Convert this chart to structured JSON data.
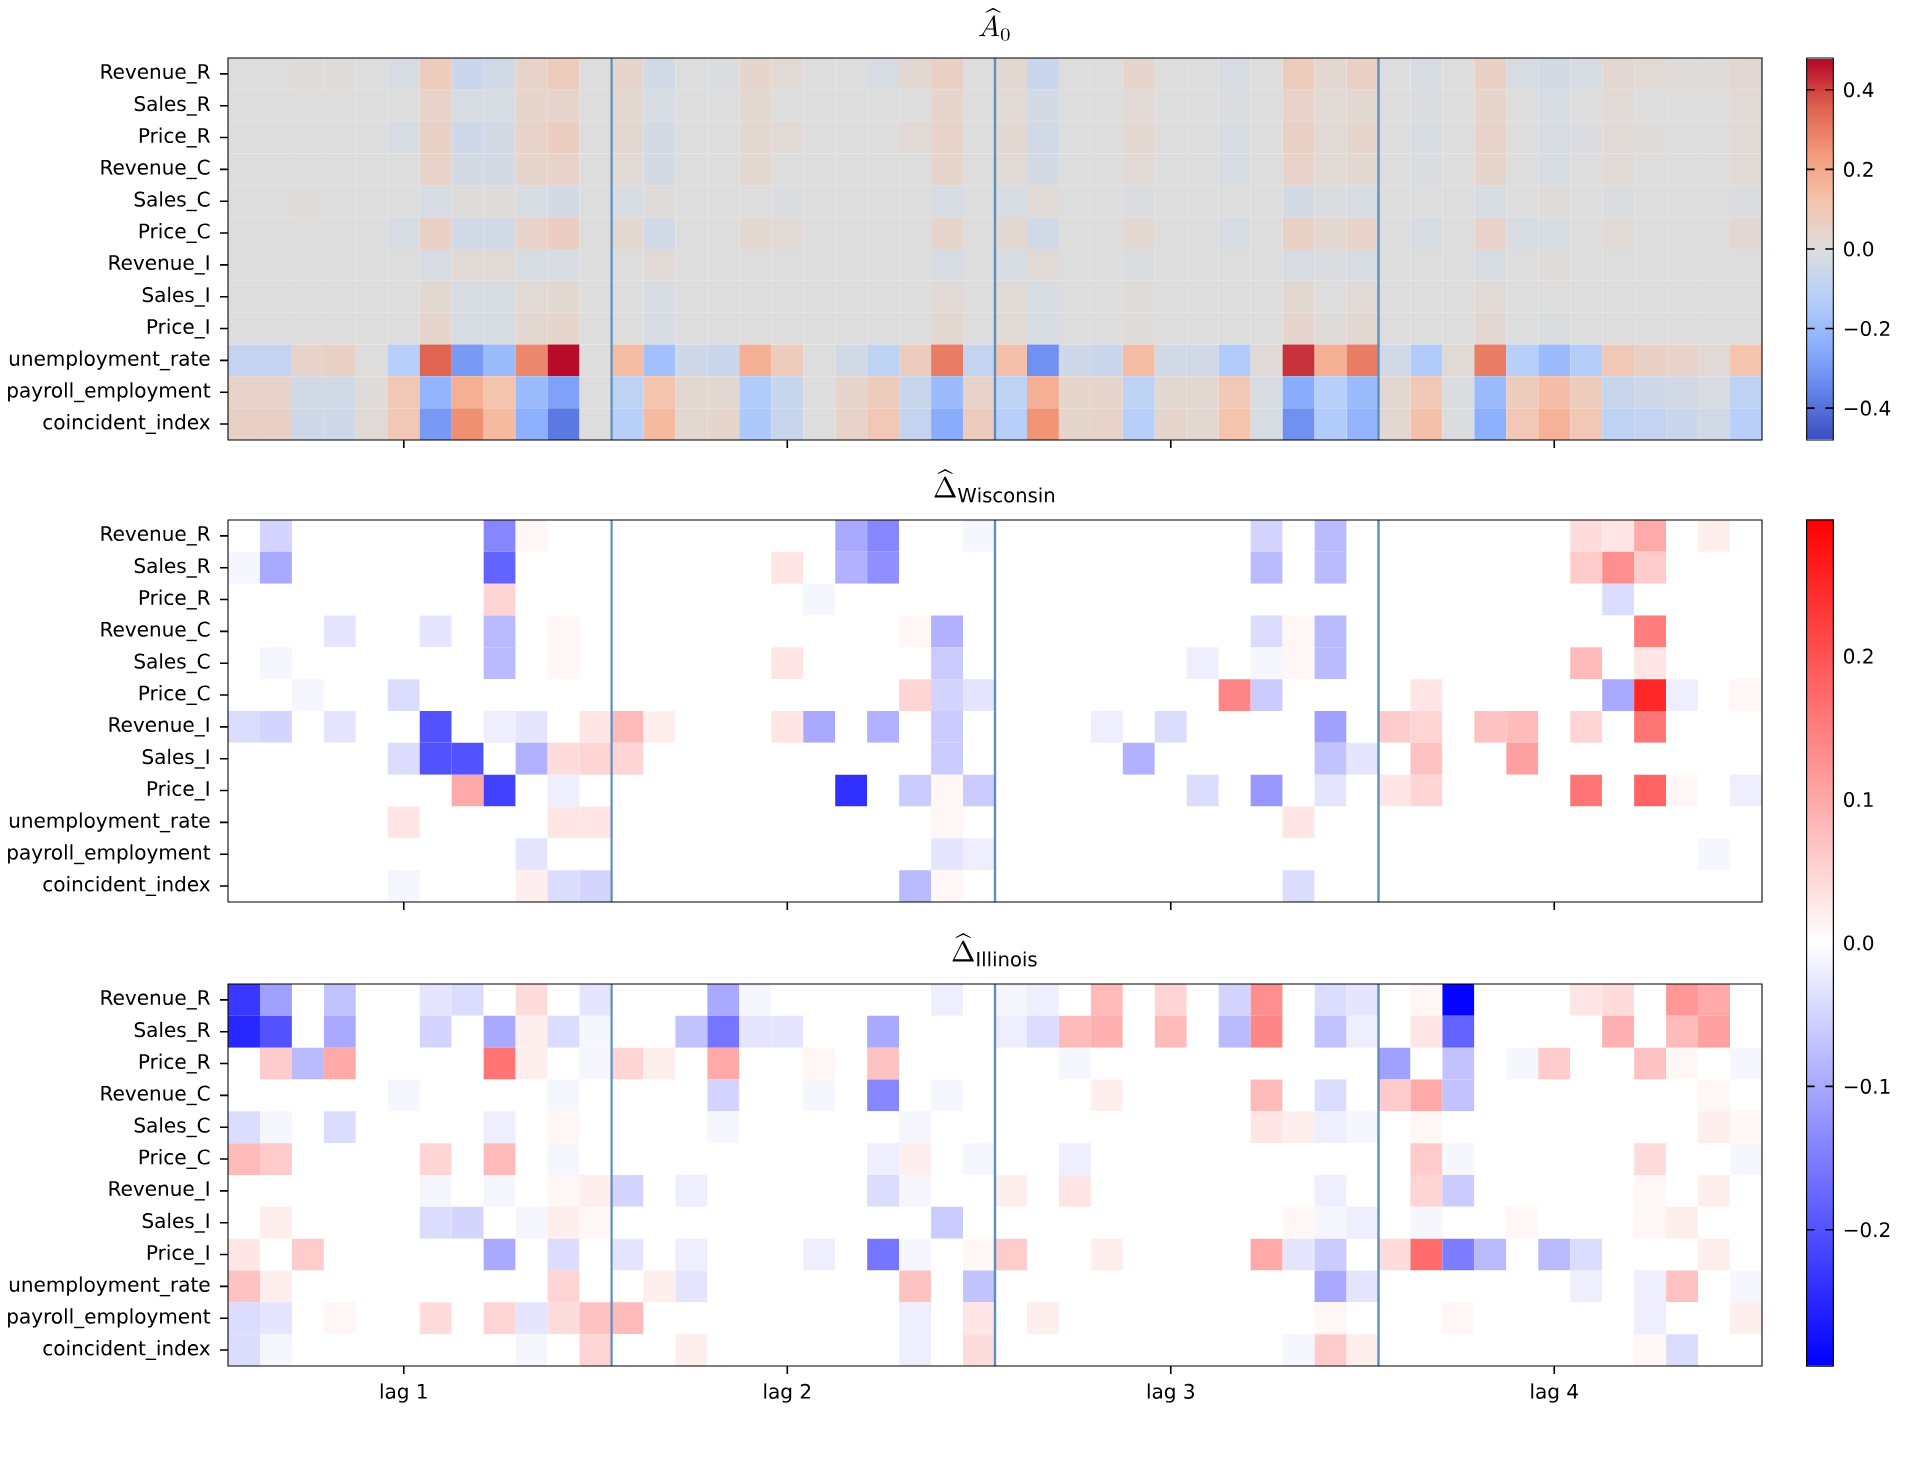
{
  "chart_data": [
    {
      "type": "heatmap",
      "title": "\\widehat{A}_0",
      "categories": [
        null,
        null,
        null,
        null,
        null,
        null,
        null,
        null,
        null,
        null,
        null,
        null,
        null,
        null,
        null,
        null,
        null,
        null,
        null,
        null,
        null,
        null,
        null,
        null,
        null,
        null,
        null,
        null,
        null,
        null,
        null,
        null,
        null,
        null,
        null,
        null,
        null,
        null,
        null,
        null,
        null,
        null,
        null,
        null,
        null,
        null,
        null,
        null
      ],
      "y_categories": [
        "Revenue_R",
        "Sales_R",
        "Price_R",
        "Revenue_C",
        "Sales_C",
        "Price_C",
        "Revenue_I",
        "Sales_I",
        "Price_I",
        "unemployment_rate",
        "payroll_employment",
        "coincident_index"
      ],
      "clim": [
        -0.48,
        0.48
      ],
      "cticks": [
        {
          "value": -0.4,
          "label": "−0.4"
        },
        {
          "value": -0.2,
          "label": "−0.2"
        },
        {
          "value": 0,
          "label": "0.0"
        },
        {
          "value": 0.2,
          "label": "0.2"
        },
        {
          "value": 0.4,
          "label": "0.4"
        }
      ],
      "cells": [
        [
          0,
          0,
          0.01,
          0.01,
          0,
          -0.02,
          0.08,
          -0.06,
          -0.04,
          0.05,
          0.08,
          0,
          0.04,
          -0.04,
          0,
          -0.01,
          0.04,
          0.02,
          0,
          0,
          -0.02,
          0.03,
          0.06,
          0,
          0.03,
          -0.06,
          0,
          0,
          0.04,
          0,
          0,
          -0.02,
          0,
          0.08,
          0.03,
          0.06,
          0,
          -0.02,
          0,
          0.06,
          -0.02,
          -0.03,
          -0.02,
          0.03,
          0.02,
          0.01,
          0.01,
          0.03
        ],
        [
          0,
          0,
          0,
          0,
          0,
          0,
          0.05,
          -0.02,
          -0.02,
          0.04,
          0.04,
          0,
          0.03,
          -0.02,
          0,
          0,
          0.03,
          0,
          0,
          0,
          0,
          0,
          0.04,
          0,
          0.02,
          -0.03,
          0,
          0,
          0.02,
          0,
          0,
          -0.01,
          0,
          0.05,
          0.02,
          0.03,
          0,
          -0.01,
          0,
          0.04,
          0,
          -0.02,
          0,
          0.02,
          0,
          0,
          0,
          0.02
        ],
        [
          0,
          0,
          0,
          0,
          0,
          -0.02,
          0.06,
          -0.05,
          -0.03,
          0.05,
          0.07,
          0,
          0.03,
          -0.03,
          0,
          0,
          0.03,
          0.02,
          0,
          0,
          0,
          0.02,
          0.05,
          0,
          0.03,
          -0.04,
          0,
          0,
          0.03,
          0,
          0,
          -0.02,
          0,
          0.06,
          0.02,
          0.04,
          0,
          -0.02,
          0,
          0.05,
          0,
          -0.02,
          -0.01,
          0.02,
          0.01,
          0,
          0,
          0.02
        ],
        [
          0,
          0,
          0,
          0,
          0,
          0,
          0.05,
          -0.03,
          -0.03,
          0.04,
          0.05,
          0,
          0.02,
          -0.03,
          0,
          0,
          0.03,
          0,
          0,
          0,
          0,
          0,
          0.04,
          0,
          0.02,
          -0.03,
          0,
          0,
          0.02,
          0,
          0,
          -0.02,
          0,
          0.05,
          0.02,
          0.03,
          0,
          -0.01,
          0,
          0.04,
          0,
          -0.02,
          0,
          0.02,
          0,
          0,
          0,
          0.02
        ],
        [
          0,
          0,
          0.01,
          0,
          0,
          0,
          -0.02,
          0.01,
          0.01,
          -0.02,
          -0.03,
          0,
          -0.02,
          0.01,
          0,
          0,
          0,
          -0.01,
          0,
          0,
          0,
          0,
          -0.02,
          0,
          -0.02,
          0.02,
          0,
          0,
          -0.01,
          0,
          0,
          0,
          0,
          -0.03,
          -0.01,
          -0.02,
          0,
          0,
          0,
          -0.02,
          0,
          0.01,
          0,
          -0.01,
          0,
          0,
          0,
          -0.01
        ],
        [
          0,
          0,
          0,
          0,
          0,
          -0.02,
          0.06,
          -0.04,
          -0.04,
          0.05,
          0.07,
          0,
          0.03,
          -0.04,
          0,
          0,
          0.03,
          0.02,
          0,
          0,
          0,
          0,
          0.04,
          0,
          0.03,
          -0.04,
          0,
          0,
          0.03,
          0,
          0,
          -0.02,
          0,
          0.06,
          0.03,
          0.05,
          0,
          -0.02,
          0,
          0.05,
          -0.02,
          -0.02,
          0,
          0.02,
          0,
          0,
          0,
          0.03
        ],
        [
          0,
          0,
          0,
          0,
          0,
          0,
          -0.02,
          0.02,
          0.02,
          -0.02,
          -0.02,
          0,
          0,
          0.02,
          0,
          0,
          0,
          0,
          0,
          0,
          0,
          0,
          -0.02,
          0,
          -0.02,
          0.02,
          0,
          0,
          -0.01,
          0,
          0,
          0,
          0,
          -0.02,
          -0.01,
          -0.02,
          0,
          0,
          0,
          -0.02,
          0,
          0.01,
          0,
          0,
          0,
          0,
          0,
          0
        ],
        [
          0,
          0,
          0,
          0,
          0,
          0,
          0.03,
          -0.02,
          -0.02,
          0.02,
          0.03,
          0,
          0,
          -0.02,
          0,
          0,
          0,
          0,
          0,
          0,
          0,
          0,
          0.02,
          0,
          0.02,
          -0.02,
          0,
          0,
          0.01,
          0,
          0,
          0,
          0,
          0.03,
          0,
          0.02,
          0,
          0,
          0,
          0.02,
          0,
          0,
          0,
          0,
          0,
          0,
          0,
          0
        ],
        [
          0,
          0,
          0,
          0,
          0,
          0,
          0.04,
          -0.02,
          -0.02,
          0.03,
          0.04,
          0,
          0,
          -0.02,
          0,
          0,
          0,
          0,
          0,
          0,
          0,
          0,
          0.03,
          0,
          0.02,
          -0.02,
          0,
          0,
          0.01,
          0,
          0,
          0,
          0,
          0.04,
          0.01,
          0.03,
          0,
          0,
          0,
          0.03,
          0,
          -0.01,
          0,
          0,
          0,
          0,
          0,
          0
        ],
        [
          -0.08,
          -0.08,
          0.05,
          0.06,
          0,
          -0.12,
          0.35,
          -0.3,
          -0.2,
          0.28,
          0.47,
          0,
          0.14,
          -0.18,
          -0.05,
          -0.06,
          0.18,
          0.08,
          0,
          -0.04,
          -0.1,
          0.08,
          0.3,
          -0.08,
          0.13,
          -0.32,
          -0.05,
          -0.06,
          0.14,
          -0.04,
          -0.04,
          -0.14,
          0.02,
          0.42,
          0.18,
          0.3,
          -0.04,
          -0.14,
          0.02,
          0.3,
          -0.12,
          -0.2,
          -0.13,
          0.1,
          0.06,
          0.05,
          0.02,
          0.12
        ],
        [
          0.05,
          0.05,
          -0.04,
          -0.04,
          0.01,
          0.1,
          -0.22,
          0.18,
          0.12,
          -0.2,
          -0.28,
          0,
          -0.1,
          0.12,
          0.03,
          0.03,
          -0.14,
          -0.07,
          0,
          0.04,
          0.08,
          -0.07,
          -0.2,
          0.05,
          -0.1,
          0.18,
          0.04,
          0.04,
          -0.1,
          0.03,
          0.03,
          0.1,
          -0.02,
          -0.25,
          -0.12,
          -0.2,
          0.03,
          0.1,
          -0.01,
          -0.2,
          0.08,
          0.14,
          0.08,
          -0.07,
          -0.05,
          -0.04,
          -0.02,
          -0.1
        ],
        [
          0.06,
          0.06,
          -0.05,
          -0.05,
          0.02,
          0.1,
          -0.3,
          0.26,
          0.15,
          -0.24,
          -0.38,
          0,
          -0.12,
          0.15,
          0.03,
          0.04,
          -0.15,
          -0.07,
          0,
          0.05,
          0.1,
          -0.08,
          -0.25,
          0.08,
          -0.12,
          0.25,
          0.04,
          0.05,
          -0.12,
          0.04,
          0.03,
          0.12,
          -0.02,
          -0.32,
          -0.14,
          -0.22,
          0.03,
          0.13,
          -0.01,
          -0.24,
          0.1,
          0.17,
          0.1,
          -0.1,
          -0.08,
          -0.06,
          -0.04,
          -0.12
        ]
      ]
    },
    {
      "type": "heatmap",
      "title": "\\widehat{\\Delta}_{\\mathrm{Wisconsin}}",
      "categories": [
        null,
        null,
        null,
        null,
        null,
        null,
        null,
        null,
        null,
        null,
        null,
        null,
        null,
        null,
        null,
        null,
        null,
        null,
        null,
        null,
        null,
        null,
        null,
        null,
        null,
        null,
        null,
        null,
        null,
        null,
        null,
        null,
        null,
        null,
        null,
        null,
        null,
        null,
        null,
        null,
        null,
        null,
        null,
        null,
        null,
        null,
        null,
        null
      ],
      "y_categories": [
        "Revenue_R",
        "Sales_R",
        "Price_R",
        "Revenue_C",
        "Sales_C",
        "Price_C",
        "Revenue_I",
        "Sales_I",
        "Price_I",
        "unemployment_rate",
        "payroll_employment",
        "coincident_index"
      ],
      "clim": [
        -0.295,
        0.295
      ],
      "cticks": [
        {
          "value": 0,
          "label": "0.0"
        },
        {
          "value": 0.1,
          "label": "0.1"
        },
        {
          "value": 0.2,
          "label": "0.2"
        }
      ],
      "cells": [
        [
          0,
          -0.05,
          0,
          0,
          0,
          0,
          0,
          0,
          -0.14,
          0.01,
          0,
          0,
          0,
          0,
          0,
          0,
          0,
          0,
          0,
          -0.1,
          -0.14,
          0,
          0,
          -0.01,
          0,
          0,
          0,
          0,
          0,
          0,
          0,
          0,
          -0.05,
          0,
          -0.08,
          0,
          0,
          0,
          0,
          0,
          0,
          0,
          0.04,
          0.03,
          0.1,
          0,
          0.02,
          0
        ],
        [
          -0.01,
          -0.1,
          0,
          0,
          0,
          0,
          0,
          0,
          -0.18,
          0,
          0,
          0,
          0,
          0,
          0,
          0,
          0,
          0.03,
          0,
          -0.09,
          -0.13,
          0,
          0,
          0,
          0,
          0,
          0,
          0,
          0,
          0,
          0,
          0,
          -0.08,
          0,
          -0.08,
          0,
          0,
          0,
          0,
          0,
          0,
          0,
          0.06,
          0.13,
          0.06,
          0,
          0,
          0
        ],
        [
          0,
          0,
          0,
          0,
          0,
          0,
          0,
          0,
          0.05,
          0,
          0,
          0,
          0,
          0,
          0,
          0,
          0,
          0,
          -0.01,
          0,
          0,
          0,
          0,
          0,
          0,
          0,
          0,
          0,
          0,
          0,
          0,
          0,
          0,
          0,
          0,
          0,
          0,
          0,
          0,
          0,
          0,
          0,
          0,
          -0.04,
          0,
          0,
          0,
          0
        ],
        [
          0,
          0,
          0,
          -0.03,
          0,
          0,
          -0.03,
          0,
          -0.08,
          0,
          0.01,
          0,
          0,
          0,
          0,
          0,
          0,
          0,
          0,
          0,
          0,
          0.01,
          -0.09,
          0,
          0,
          0,
          0,
          0,
          0,
          0,
          0,
          0,
          -0.04,
          0.01,
          -0.08,
          0,
          0,
          0,
          0,
          0,
          0,
          0,
          0,
          0,
          0.15,
          0,
          0,
          0
        ],
        [
          0,
          -0.01,
          0,
          0,
          0,
          0,
          0,
          0,
          -0.08,
          0,
          0.01,
          0,
          0,
          0,
          0,
          0,
          0,
          0.03,
          0,
          0,
          0,
          0,
          -0.06,
          0,
          0,
          0,
          0,
          0,
          0,
          0,
          -0.02,
          0,
          -0.01,
          0.01,
          -0.08,
          0,
          0,
          0,
          0,
          0,
          0,
          0,
          0.08,
          0,
          0.03,
          0,
          0,
          0
        ],
        [
          0,
          0,
          -0.01,
          0,
          0,
          -0.04,
          0,
          0,
          0,
          0,
          0,
          0,
          0,
          0,
          0,
          0,
          0,
          0,
          0,
          0,
          0,
          0.05,
          -0.05,
          -0.03,
          0,
          0,
          0,
          0,
          0,
          0,
          0,
          0.14,
          -0.06,
          0,
          0,
          0,
          0,
          0.03,
          0,
          0,
          0,
          0,
          0,
          -0.1,
          0.25,
          -0.02,
          0,
          0.01
        ],
        [
          -0.04,
          -0.05,
          0,
          -0.03,
          0,
          0,
          -0.2,
          0,
          -0.02,
          -0.03,
          0,
          0.03,
          0.08,
          0.02,
          0,
          0,
          0,
          0.03,
          -0.1,
          0,
          -0.09,
          0,
          -0.06,
          0,
          0,
          0,
          0,
          -0.02,
          0,
          -0.04,
          0,
          0,
          0,
          0,
          -0.11,
          0,
          0.06,
          0.05,
          0,
          0.07,
          0.08,
          0,
          0.05,
          0,
          0.16,
          0,
          0,
          0
        ],
        [
          0,
          0,
          0,
          0,
          0,
          -0.04,
          -0.2,
          -0.2,
          0,
          -0.09,
          0.04,
          0.05,
          0.05,
          0,
          0,
          0,
          0,
          0,
          0,
          0,
          0,
          0,
          -0.06,
          0,
          0,
          0,
          0,
          0,
          -0.09,
          0,
          0,
          0,
          0,
          0,
          -0.07,
          -0.03,
          0,
          0.07,
          0,
          0,
          0.11,
          0,
          0,
          0,
          0,
          0,
          0,
          0
        ],
        [
          0,
          0,
          0,
          0,
          0,
          0,
          0,
          0.1,
          -0.22,
          0,
          -0.02,
          0,
          0,
          0,
          0,
          0,
          0,
          0,
          0,
          -0.24,
          0,
          -0.06,
          0.01,
          -0.06,
          0,
          0,
          0,
          0,
          0,
          0,
          -0.04,
          0,
          -0.12,
          0,
          -0.03,
          0,
          0.03,
          0.05,
          0,
          0,
          0,
          0,
          0.16,
          0,
          0.18,
          0.01,
          0,
          -0.02
        ],
        [
          0,
          0,
          0,
          0,
          0,
          0.03,
          0,
          0,
          0,
          0,
          0.03,
          0.03,
          0,
          0,
          0,
          0,
          0,
          0,
          0,
          0,
          0,
          0,
          0.01,
          0,
          0,
          0,
          0,
          0,
          0,
          0,
          0,
          0,
          0,
          0.03,
          0,
          0,
          0,
          0,
          0,
          0,
          0,
          0,
          0,
          0,
          0,
          0,
          0,
          0
        ],
        [
          0,
          0,
          0,
          0,
          0,
          0,
          0,
          0,
          0,
          -0.03,
          0,
          0,
          0,
          0,
          0,
          0,
          0,
          0,
          0,
          0,
          0,
          0,
          -0.03,
          -0.02,
          0,
          0,
          0,
          0,
          0,
          0,
          0,
          0,
          0,
          0,
          0,
          0,
          0,
          0,
          0,
          0,
          0,
          0,
          0,
          0,
          0,
          0,
          -0.01,
          0
        ],
        [
          0,
          0,
          0,
          0,
          0,
          -0.01,
          0,
          0,
          0,
          0.02,
          -0.04,
          -0.05,
          0,
          0,
          0,
          0,
          0,
          0,
          0,
          0,
          0,
          -0.08,
          0.01,
          0,
          0,
          0,
          0,
          0,
          0,
          0,
          0,
          0,
          0,
          -0.04,
          0,
          0,
          0,
          0,
          0,
          0,
          0,
          0,
          0,
          0,
          0,
          0,
          0,
          0
        ]
      ]
    },
    {
      "type": "heatmap",
      "title": "\\widehat{\\Delta}_{\\mathrm{Illinois}}",
      "categories": [
        null,
        null,
        null,
        null,
        null,
        "lag 1",
        null,
        null,
        null,
        null,
        null,
        null,
        null,
        null,
        null,
        null,
        null,
        "lag 2",
        null,
        null,
        null,
        null,
        null,
        null,
        null,
        null,
        null,
        null,
        null,
        "lag 3",
        null,
        null,
        null,
        null,
        null,
        null,
        null,
        null,
        null,
        null,
        null,
        "lag 4",
        null,
        null,
        null,
        null,
        null,
        null
      ],
      "y_categories": [
        "Revenue_R",
        "Sales_R",
        "Price_R",
        "Revenue_C",
        "Sales_C",
        "Price_C",
        "Revenue_I",
        "Sales_I",
        "Price_I",
        "unemployment_rate",
        "payroll_employment",
        "coincident_index"
      ],
      "clim": [
        -0.295,
        0.295
      ],
      "cticks": [
        {
          "value": -0.2,
          "label": "−0.2"
        },
        {
          "value": -0.1,
          "label": "−0.1"
        }
      ],
      "cells": [
        [
          -0.23,
          -0.11,
          0,
          -0.07,
          0,
          0,
          -0.03,
          -0.04,
          0,
          0.04,
          0,
          -0.03,
          0,
          0,
          0,
          -0.1,
          -0.01,
          0,
          0,
          0,
          0,
          0,
          -0.02,
          0,
          -0.01,
          -0.02,
          0,
          0.08,
          0,
          0.05,
          0,
          -0.05,
          0.13,
          0,
          -0.04,
          -0.03,
          0,
          0.01,
          -0.29,
          0,
          0,
          0,
          0.03,
          0.04,
          0,
          0.12,
          0.1,
          0
        ],
        [
          -0.25,
          -0.2,
          0,
          -0.1,
          0,
          0,
          -0.05,
          0,
          -0.1,
          0.02,
          -0.04,
          -0.01,
          0,
          0,
          -0.07,
          -0.16,
          -0.03,
          -0.03,
          0,
          0,
          -0.1,
          0,
          0,
          0,
          -0.02,
          -0.04,
          0.08,
          0.09,
          0,
          0.08,
          0,
          -0.08,
          0.14,
          0,
          -0.07,
          -0.02,
          0,
          0.03,
          -0.18,
          0,
          0,
          0,
          0,
          0.09,
          0,
          0.08,
          0.11,
          0
        ],
        [
          0,
          0.06,
          -0.08,
          0.1,
          0,
          0,
          0,
          0,
          0.16,
          0.02,
          0,
          -0.01,
          0.05,
          0.02,
          0,
          0.1,
          0,
          0,
          0.01,
          0,
          0.07,
          0,
          0,
          0,
          0,
          0,
          -0.01,
          0,
          0,
          0,
          0,
          0,
          0,
          0,
          0,
          0,
          -0.11,
          0,
          -0.07,
          0,
          -0.01,
          0.06,
          0,
          0,
          0.07,
          0.01,
          0,
          -0.01
        ],
        [
          0,
          0,
          0,
          0,
          0,
          -0.01,
          0,
          0,
          0,
          0,
          -0.01,
          0,
          0,
          0,
          0,
          -0.05,
          0,
          0,
          -0.01,
          0,
          -0.14,
          0,
          -0.01,
          0,
          0,
          0,
          0,
          0.02,
          0,
          0,
          0,
          0,
          0.08,
          0,
          -0.04,
          0,
          0.06,
          0.1,
          -0.07,
          0,
          0,
          0,
          0,
          0,
          0,
          0,
          0.01,
          0
        ],
        [
          -0.04,
          -0.01,
          0,
          -0.04,
          0,
          0,
          0,
          0,
          -0.02,
          0,
          0.01,
          0,
          0,
          0,
          0,
          -0.01,
          0,
          0,
          0,
          0,
          0,
          -0.01,
          0,
          0,
          0,
          0,
          0,
          0,
          0,
          0,
          0,
          0,
          0.03,
          0.02,
          -0.02,
          -0.01,
          0,
          0.01,
          0,
          0,
          0,
          0,
          0,
          0,
          0,
          0,
          0.02,
          0.01
        ],
        [
          0.08,
          0.06,
          0,
          0,
          0,
          0,
          0.05,
          0,
          0.08,
          0,
          -0.01,
          0,
          0,
          0,
          0,
          0,
          0,
          0,
          0,
          0,
          -0.02,
          0.02,
          0,
          -0.01,
          0,
          0,
          -0.02,
          0,
          0,
          0,
          0,
          0,
          0,
          0,
          0,
          0,
          0,
          0.06,
          -0.01,
          0,
          0,
          0,
          0,
          0,
          0.04,
          0,
          0,
          -0.01
        ],
        [
          0,
          0,
          0,
          0,
          0,
          0,
          -0.01,
          0,
          -0.01,
          0,
          0.01,
          0.02,
          -0.05,
          0,
          -0.02,
          0,
          0,
          0,
          0,
          0,
          -0.04,
          -0.01,
          0,
          0,
          0.02,
          0,
          0.03,
          0,
          0,
          0,
          0,
          0,
          0,
          0,
          -0.02,
          0,
          0,
          0.05,
          -0.06,
          0,
          0,
          0,
          0,
          0,
          0.01,
          0,
          0.02,
          0
        ],
        [
          0,
          0.02,
          0,
          0,
          0,
          0,
          -0.04,
          -0.05,
          0,
          -0.01,
          0.02,
          0.01,
          0,
          0,
          0,
          0,
          0,
          0,
          0,
          0,
          0,
          0,
          -0.06,
          0,
          0,
          0,
          0,
          0,
          0,
          0,
          0,
          0,
          0,
          0.01,
          -0.01,
          -0.02,
          0,
          -0.01,
          0,
          0,
          0.01,
          0,
          0,
          0,
          0.01,
          0.02,
          0,
          0
        ],
        [
          0.03,
          0,
          0.06,
          0,
          0,
          0,
          0,
          0,
          -0.1,
          0,
          -0.04,
          0,
          -0.03,
          0,
          -0.02,
          0,
          0,
          0,
          -0.02,
          0,
          -0.16,
          -0.01,
          0,
          0.01,
          0.06,
          0,
          0,
          0.02,
          0,
          0,
          0,
          0,
          0.1,
          -0.03,
          -0.06,
          0,
          0.04,
          0.17,
          -0.15,
          -0.08,
          0,
          -0.08,
          -0.04,
          0,
          0,
          0,
          0.02,
          0
        ],
        [
          0.07,
          0.02,
          0,
          0,
          0,
          0,
          0,
          0,
          0,
          0,
          0.05,
          0,
          0,
          0.02,
          -0.03,
          0,
          0,
          0,
          0,
          0,
          0,
          0.07,
          0,
          -0.07,
          0,
          0,
          0,
          0,
          0,
          0,
          0,
          0,
          0,
          0,
          -0.1,
          -0.03,
          0,
          0,
          0,
          0,
          0,
          0,
          -0.02,
          0,
          -0.02,
          0.07,
          0,
          -0.01
        ],
        [
          -0.04,
          -0.03,
          0,
          0.01,
          0,
          0,
          0.04,
          0,
          0.05,
          -0.03,
          0.04,
          0.07,
          0.08,
          0,
          0,
          0,
          0,
          0,
          0,
          0,
          0,
          -0.02,
          0,
          0.03,
          0,
          0.02,
          0,
          0,
          0,
          0,
          0,
          0,
          0,
          0,
          0.01,
          0,
          0,
          0,
          0.01,
          0,
          0,
          0,
          0,
          0,
          -0.02,
          0,
          0,
          0.02
        ],
        [
          -0.04,
          -0.01,
          0,
          0,
          0,
          0,
          0,
          0,
          0,
          -0.01,
          0,
          0.05,
          0,
          0,
          0.02,
          0,
          0,
          0,
          0,
          0,
          0,
          -0.02,
          0,
          0.04,
          0,
          0,
          0,
          0,
          0,
          0,
          0,
          0,
          0,
          -0.01,
          0.06,
          0.02,
          0,
          0,
          0,
          0,
          0,
          0,
          0,
          0,
          0.01,
          -0.04,
          0,
          0
        ]
      ]
    }
  ]
}
